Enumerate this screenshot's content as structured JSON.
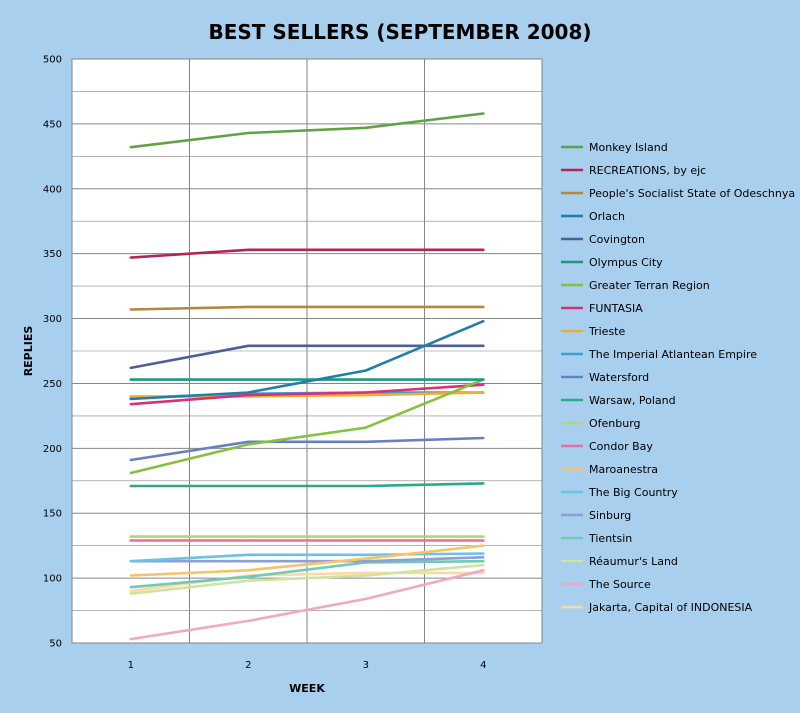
{
  "chart_data": {
    "type": "line",
    "title": "BEST SELLERS (SEPTEMBER 2008)",
    "xlabel": "WEEK",
    "ylabel": "REPLIES",
    "categories": [
      "1",
      "2",
      "3",
      "4"
    ],
    "ylim": [
      50,
      500
    ],
    "yticks": [
      50,
      100,
      150,
      200,
      250,
      300,
      350,
      400,
      450,
      500
    ],
    "grid": true,
    "legend_position": "right",
    "background_color": "#a9cfee",
    "plot_background": "#ffffff",
    "grid_color": "#868686",
    "series": [
      {
        "name": "Monkey Island",
        "color": "#5fa344",
        "values": [
          432,
          443,
          447,
          458
        ]
      },
      {
        "name": "RECREATIONS, by ejc",
        "color": "#b3245b",
        "values": [
          347,
          353,
          353,
          353
        ]
      },
      {
        "name": "People's Socialist State of Odeschnya",
        "color": "#b08a3a",
        "values": [
          307,
          309,
          309,
          309
        ]
      },
      {
        "name": "Orlach",
        "color": "#207fa8",
        "values": [
          238,
          243,
          260,
          298
        ]
      },
      {
        "name": "Covington",
        "color": "#4f5d99",
        "values": [
          262,
          279,
          279,
          279
        ]
      },
      {
        "name": "Olympus City",
        "color": "#19997d",
        "values": [
          253,
          253,
          253,
          253
        ]
      },
      {
        "name": "Greater Terran Region",
        "color": "#86c13e",
        "values": [
          181,
          203,
          216,
          253
        ]
      },
      {
        "name": "FUNTASIA",
        "color": "#d83179",
        "values": [
          234,
          241,
          243,
          249
        ]
      },
      {
        "name": "Trieste",
        "color": "#f0ae31",
        "values": [
          240,
          240,
          241,
          243
        ]
      },
      {
        "name": "The Imperial Atlantean Empire",
        "color": "#33a3cf",
        "values": [
          239,
          242,
          243,
          243
        ]
      },
      {
        "name": "Watersford",
        "color": "#6a7ec2",
        "values": [
          191,
          205,
          205,
          208
        ]
      },
      {
        "name": "Warsaw, Poland",
        "color": "#2aaa8c",
        "values": [
          171,
          171,
          171,
          173
        ]
      },
      {
        "name": "Ofenburg",
        "color": "#b2d770",
        "values": [
          132,
          132,
          132,
          132
        ]
      },
      {
        "name": "Condor Bay",
        "color": "#ea6d9b",
        "values": [
          129,
          129,
          129,
          129
        ]
      },
      {
        "name": "Maroanestra",
        "color": "#f7c369",
        "values": [
          102,
          106,
          115,
          125
        ]
      },
      {
        "name": "The Big Country",
        "color": "#6cc2e6",
        "values": [
          113,
          118,
          118,
          119
        ]
      },
      {
        "name": "Sinburg",
        "color": "#8e9fd6",
        "values": [
          113,
          113,
          113,
          116
        ]
      },
      {
        "name": "Tientsin",
        "color": "#6fcbb3",
        "values": [
          93,
          101,
          112,
          113
        ]
      },
      {
        "name": "Réaumur's Land",
        "color": "#cfe3a3",
        "values": [
          88,
          98,
          102,
          110
        ]
      },
      {
        "name": "The Source",
        "color": "#f0a8c3",
        "values": [
          53,
          67,
          84,
          106
        ]
      },
      {
        "name": "Jakarta, Capital of INDONESIA",
        "color": "#fad9a2",
        "values": [
          90,
          102,
          104,
          104
        ]
      }
    ]
  }
}
